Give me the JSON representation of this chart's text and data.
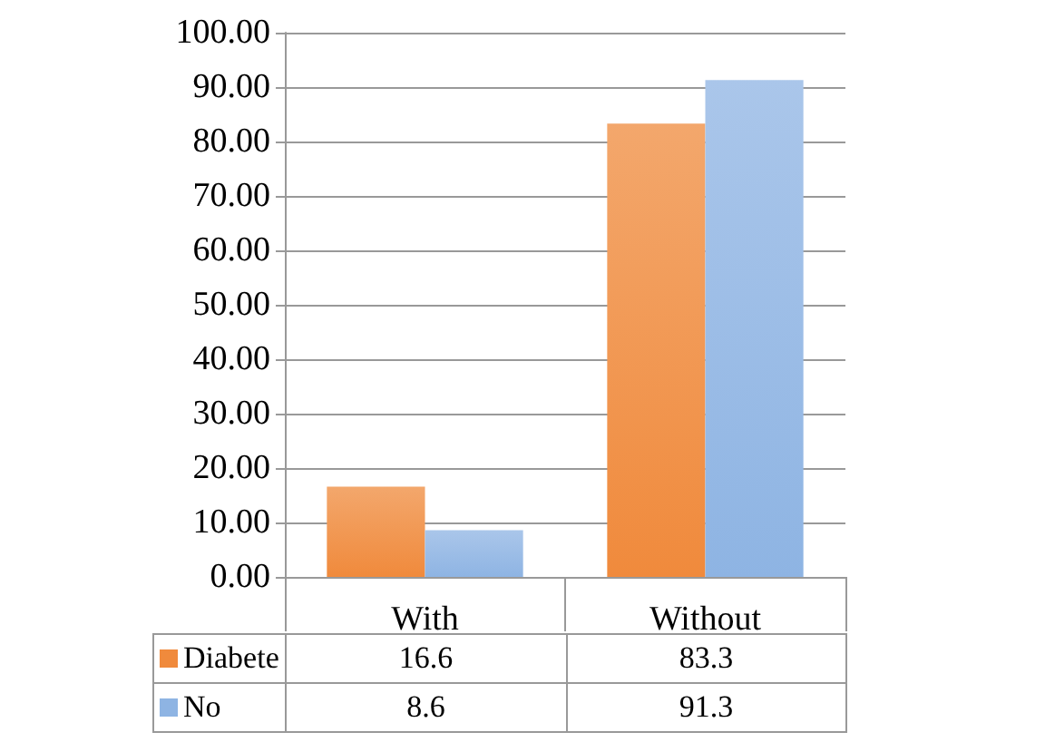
{
  "chart_data": {
    "type": "bar",
    "categories": [
      "With",
      "Without"
    ],
    "series": [
      {
        "name": "Diabete",
        "color": "#f08a3c",
        "values": [
          16.6,
          83.3
        ]
      },
      {
        "name": "No",
        "color": "#8eb4e3",
        "values": [
          8.6,
          91.3
        ]
      }
    ],
    "ylim": [
      0,
      100
    ],
    "yticks": [
      {
        "value": 0,
        "label": "0.00"
      },
      {
        "value": 10,
        "label": "10.00"
      },
      {
        "value": 20,
        "label": "20.00"
      },
      {
        "value": 30,
        "label": "30.00"
      },
      {
        "value": 40,
        "label": "40.00"
      },
      {
        "value": 50,
        "label": "50.00"
      },
      {
        "value": 60,
        "label": "60.00"
      },
      {
        "value": 70,
        "label": "70.00"
      },
      {
        "value": 80,
        "label": "80.00"
      },
      {
        "value": 90,
        "label": "90.00"
      },
      {
        "value": 100,
        "label": "100.00"
      }
    ],
    "grid": "y",
    "legend": "bottom",
    "data_labels": true
  }
}
